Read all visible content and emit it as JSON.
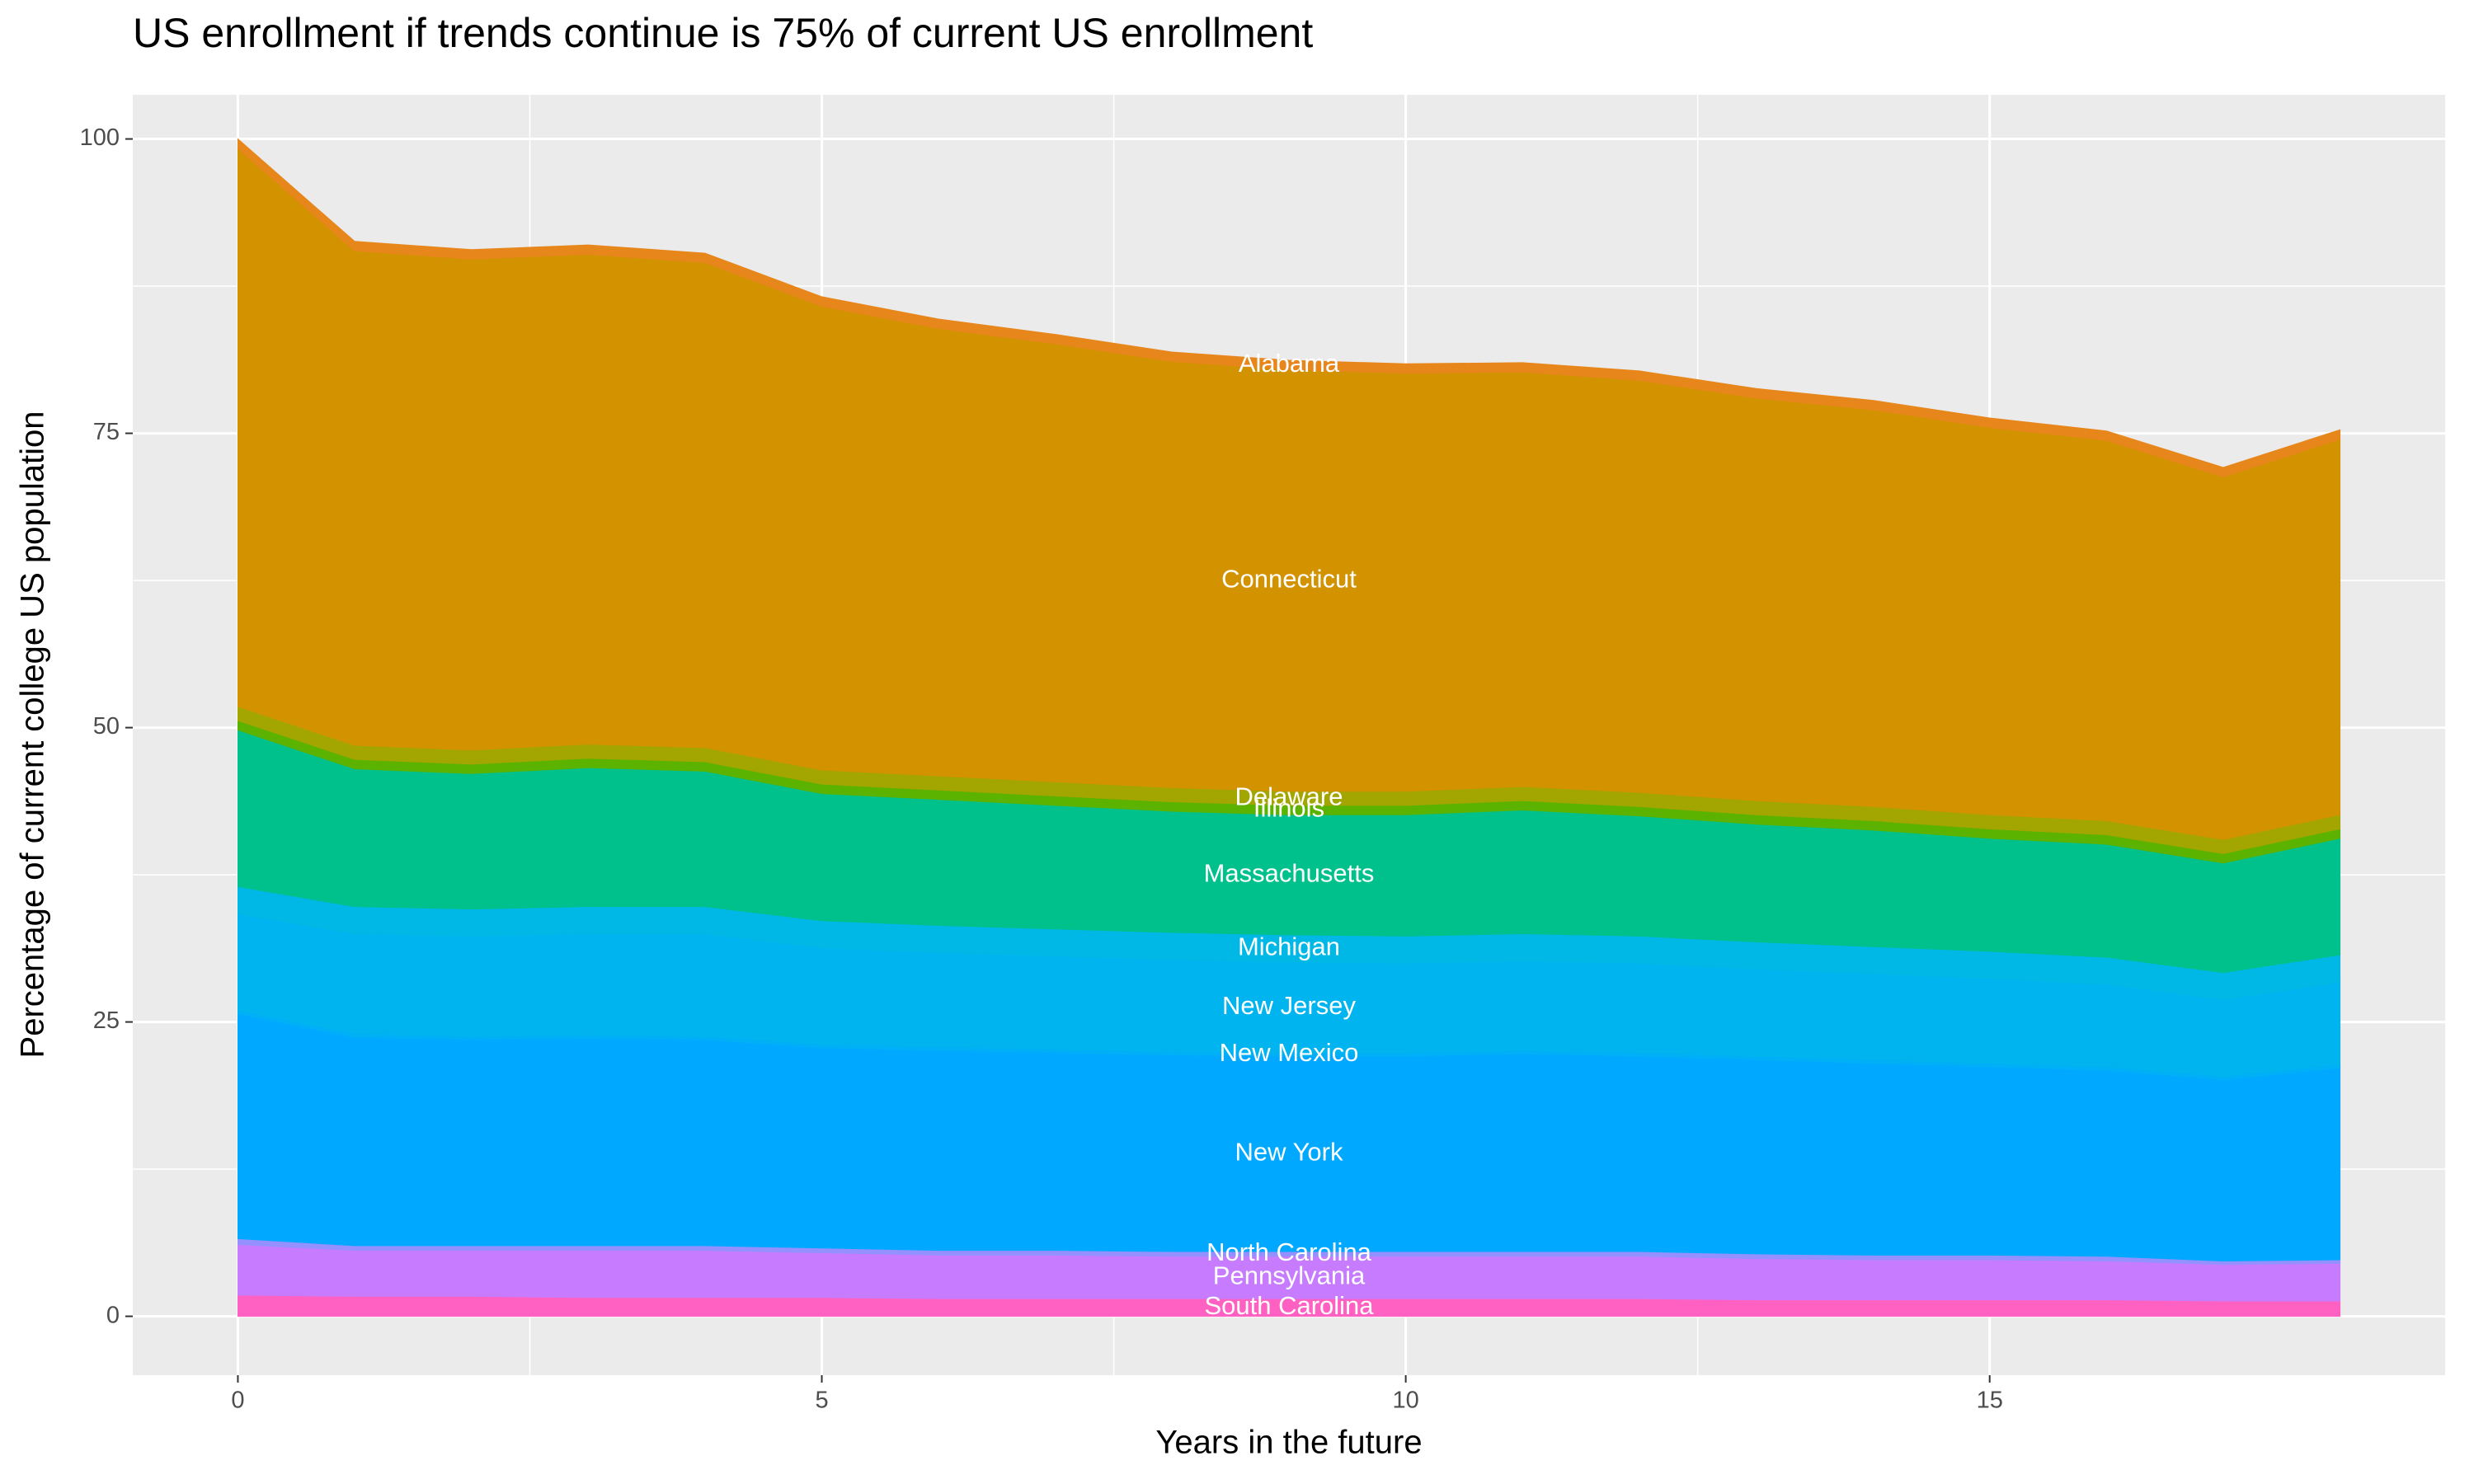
{
  "chart_data": {
    "type": "stacked_area",
    "title": "US enrollment if trends continue is 75% of current US enrollment",
    "x_label": "Years in the future",
    "y_label": "Percentage of current college US population",
    "x": [
      0,
      1,
      2,
      3,
      4,
      5,
      6,
      7,
      8,
      9,
      10,
      11,
      12,
      13,
      14,
      15,
      16,
      17,
      18
    ],
    "xlim": [
      -0.9,
      18.9
    ],
    "xticks": [
      0,
      5,
      10,
      15
    ],
    "ylim": [
      -5,
      103.75
    ],
    "yticks": [
      0,
      25,
      50,
      75,
      100
    ],
    "grid": true,
    "series": [
      {
        "name": "South Carolina",
        "color": "#ff61c3",
        "values": [
          1.8,
          1.7,
          1.7,
          1.6,
          1.6,
          1.6,
          1.5,
          1.5,
          1.5,
          1.5,
          1.5,
          1.5,
          1.5,
          1.4,
          1.4,
          1.4,
          1.4,
          1.3,
          1.3
        ]
      },
      {
        "name": "Pennsylvania",
        "color": "#c77cff",
        "values": [
          4.3,
          3.9,
          3.9,
          4.0,
          4.0,
          3.8,
          3.7,
          3.7,
          3.6,
          3.6,
          3.6,
          3.6,
          3.6,
          3.5,
          3.4,
          3.4,
          3.3,
          3.1,
          3.2
        ]
      },
      {
        "name": "North Carolina",
        "color": "#9590ff",
        "values": [
          0.5,
          0.4,
          0.4,
          0.4,
          0.4,
          0.4,
          0.4,
          0.4,
          0.4,
          0.4,
          0.4,
          0.4,
          0.4,
          0.4,
          0.4,
          0.4,
          0.4,
          0.3,
          0.3
        ]
      },
      {
        "name": "New York",
        "color": "#00a9ff",
        "values": [
          19.1,
          17.7,
          17.5,
          17.6,
          17.5,
          17.0,
          17.0,
          16.8,
          16.7,
          16.6,
          16.6,
          16.8,
          16.6,
          16.5,
          16.3,
          16.0,
          15.8,
          15.4,
          16.3
        ]
      },
      {
        "name": "New Mexico",
        "color": "#00b0f6",
        "values": [
          0.3,
          0.3,
          0.3,
          0.3,
          0.3,
          0.3,
          0.3,
          0.3,
          0.3,
          0.3,
          0.3,
          0.3,
          0.3,
          0.3,
          0.3,
          0.3,
          0.3,
          0.3,
          0.3
        ]
      },
      {
        "name": "New Jersey",
        "color": "#00b4ef",
        "values": [
          8.2,
          8.5,
          8.5,
          8.6,
          8.7,
          8.2,
          8.0,
          7.9,
          7.8,
          7.7,
          7.6,
          7.6,
          7.6,
          7.4,
          7.3,
          7.2,
          7.0,
          6.5,
          7.0
        ]
      },
      {
        "name": "Michigan",
        "color": "#00b8e5",
        "values": [
          2.3,
          2.3,
          2.3,
          2.3,
          2.3,
          2.3,
          2.3,
          2.3,
          2.3,
          2.3,
          2.3,
          2.3,
          2.3,
          2.3,
          2.3,
          2.3,
          2.3,
          2.3,
          2.3
        ]
      },
      {
        "name": "Massachusetts",
        "color": "#00c08b",
        "values": [
          13.3,
          11.7,
          11.5,
          11.8,
          11.5,
          10.8,
          10.7,
          10.5,
          10.3,
          10.2,
          10.3,
          10.5,
          10.2,
          10.0,
          9.9,
          9.6,
          9.6,
          9.3,
          9.9
        ]
      },
      {
        "name": "Illinois",
        "color": "#5bb300",
        "values": [
          0.8,
          0.8,
          0.8,
          0.8,
          0.8,
          0.8,
          0.8,
          0.8,
          0.8,
          0.8,
          0.8,
          0.8,
          0.8,
          0.8,
          0.8,
          0.8,
          0.8,
          0.8,
          0.8
        ]
      },
      {
        "name": "Delaware",
        "color": "#a3a500",
        "values": [
          1.2,
          1.2,
          1.2,
          1.2,
          1.2,
          1.2,
          1.2,
          1.2,
          1.2,
          1.2,
          1.2,
          1.2,
          1.2,
          1.2,
          1.2,
          1.2,
          1.2,
          1.2,
          1.2
        ]
      },
      {
        "name": "Connecticut",
        "color": "#d39200",
        "values": [
          47.4,
          42.0,
          41.7,
          41.6,
          41.2,
          39.4,
          38.0,
          37.2,
          36.2,
          35.8,
          35.5,
          35.2,
          35.0,
          34.2,
          33.7,
          32.9,
          32.3,
          30.8,
          31.9
        ]
      },
      {
        "name": "Alabama",
        "color": "#e7861b",
        "values": [
          0.8,
          0.8,
          0.8,
          0.8,
          0.8,
          0.8,
          0.8,
          0.8,
          0.8,
          0.8,
          0.8,
          0.8,
          0.8,
          0.8,
          0.8,
          0.8,
          0.8,
          0.8,
          0.8
        ]
      }
    ]
  }
}
